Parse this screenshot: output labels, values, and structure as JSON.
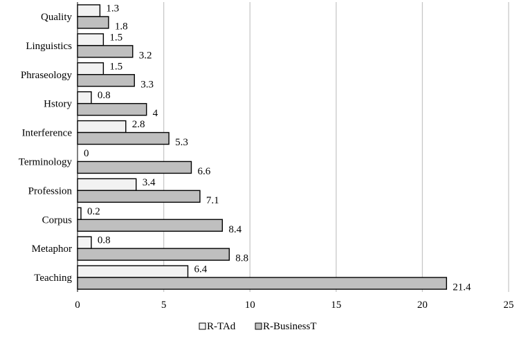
{
  "chart_data": {
    "type": "bar",
    "orientation": "horizontal",
    "categories": [
      "Quality",
      "Linguistics",
      "Phraseology",
      "Hstory",
      "Interference",
      "Terminology",
      "Profession",
      "Corpus",
      "Metaphor",
      "Teaching"
    ],
    "series": [
      {
        "name": "R-TAd",
        "values": [
          1.3,
          1.5,
          1.5,
          0.8,
          2.8,
          0,
          3.4,
          0.2,
          0.8,
          6.4
        ],
        "color": "#f2f2f2"
      },
      {
        "name": "R-BusinessT",
        "values": [
          1.8,
          3.2,
          3.3,
          4,
          5.3,
          6.6,
          7.1,
          8.4,
          8.8,
          21.4
        ],
        "color": "#bfbfbf"
      }
    ],
    "value_labels": [
      [
        "1.3",
        "1.5",
        "1.5",
        "0.8",
        "2.8",
        "0",
        "3.4",
        "0.2",
        "0.8",
        "6.4"
      ],
      [
        "1.8",
        "3.2",
        "3.3",
        "4",
        "5.3",
        "6.6",
        "7.1",
        "8.4",
        "8.8",
        "21.4"
      ]
    ],
    "x_ticks": [
      "0",
      "5",
      "10",
      "15",
      "20",
      "25"
    ],
    "xlim": [
      0,
      25
    ],
    "grid": true,
    "legend_position": "bottom"
  }
}
